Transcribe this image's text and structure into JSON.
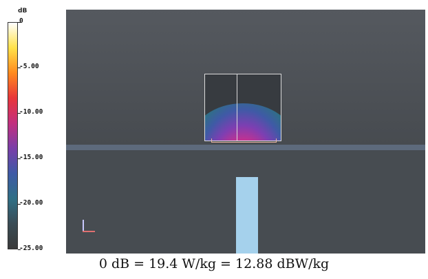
{
  "chart_data": {
    "type": "heatmap",
    "colorbar": {
      "unit": "dB",
      "ticks": [
        "0",
        "-5.00",
        "-10.00",
        "-15.00",
        "-20.00",
        "-25.00"
      ],
      "range": [
        -25,
        0
      ],
      "colors": [
        "#ffffff",
        "#ffe24a",
        "#ff8a1e",
        "#e8363a",
        "#c2307f",
        "#7a3ea8",
        "#3e5aa6",
        "#2f6f86",
        "#3a4c55",
        "#3a3a3a"
      ]
    },
    "caption": "0 dB = 19.4 W/kg = 12.88 dBW/kg"
  }
}
